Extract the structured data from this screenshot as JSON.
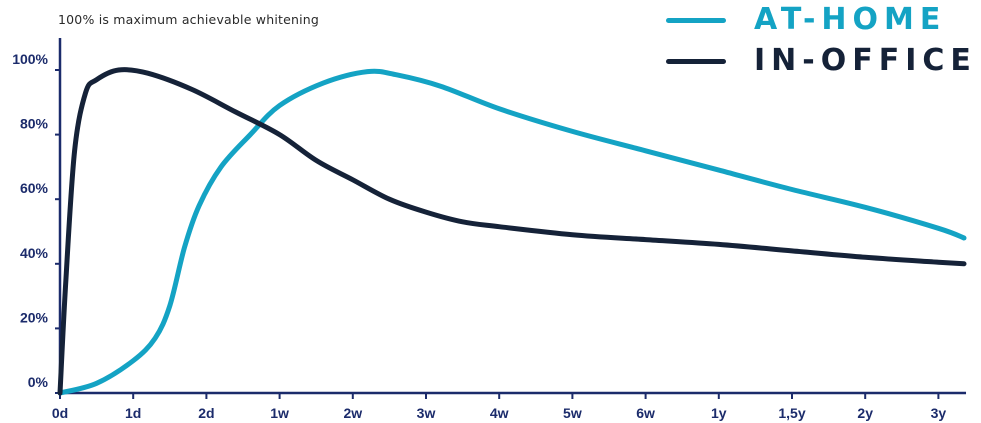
{
  "chart_data": {
    "type": "line",
    "annotation": "100% is maximum achievable whitening",
    "categories": [
      "0d",
      "1d",
      "2d",
      "1w",
      "2w",
      "3w",
      "4w",
      "5w",
      "6w",
      "1y",
      "1,5y",
      "2y",
      "3y"
    ],
    "yticks": [
      "0%",
      "20%",
      "40%",
      "60%",
      "80%",
      "100%"
    ],
    "ylim": [
      0,
      100
    ],
    "x_range_categories": [
      0,
      12.35
    ],
    "grid": false,
    "legend_position": "top-right",
    "series": [
      {
        "name": "AT-HOME",
        "color": "#14a3c4",
        "points": [
          [
            0,
            0
          ],
          [
            0.5,
            3
          ],
          [
            1.0,
            10
          ],
          [
            1.3,
            17
          ],
          [
            1.5,
            27
          ],
          [
            1.7,
            45
          ],
          [
            1.9,
            58
          ],
          [
            2.2,
            70
          ],
          [
            2.6,
            80
          ],
          [
            3.0,
            89
          ],
          [
            3.6,
            96
          ],
          [
            4.2,
            99.5
          ],
          [
            4.6,
            98.5
          ],
          [
            5.2,
            95
          ],
          [
            6.0,
            88
          ],
          [
            7.0,
            81
          ],
          [
            8.0,
            75
          ],
          [
            9.0,
            69
          ],
          [
            10.0,
            63
          ],
          [
            11.0,
            57.5
          ],
          [
            12.0,
            51
          ],
          [
            12.35,
            48
          ]
        ]
      },
      {
        "name": "IN-OFFICE",
        "color": "#152238",
        "points": [
          [
            0,
            0
          ],
          [
            0.08,
            35
          ],
          [
            0.2,
            75
          ],
          [
            0.35,
            93
          ],
          [
            0.5,
            97
          ],
          [
            0.8,
            100
          ],
          [
            1.2,
            99
          ],
          [
            1.8,
            94
          ],
          [
            2.4,
            87
          ],
          [
            3.0,
            80
          ],
          [
            3.5,
            72
          ],
          [
            4.0,
            66
          ],
          [
            4.5,
            60
          ],
          [
            5.0,
            56
          ],
          [
            5.5,
            53
          ],
          [
            6.0,
            51.5
          ],
          [
            7.0,
            49
          ],
          [
            8.0,
            47.5
          ],
          [
            9.0,
            46
          ],
          [
            10.0,
            44
          ],
          [
            11.0,
            42
          ],
          [
            12.0,
            40.5
          ],
          [
            12.35,
            40
          ]
        ]
      }
    ]
  }
}
